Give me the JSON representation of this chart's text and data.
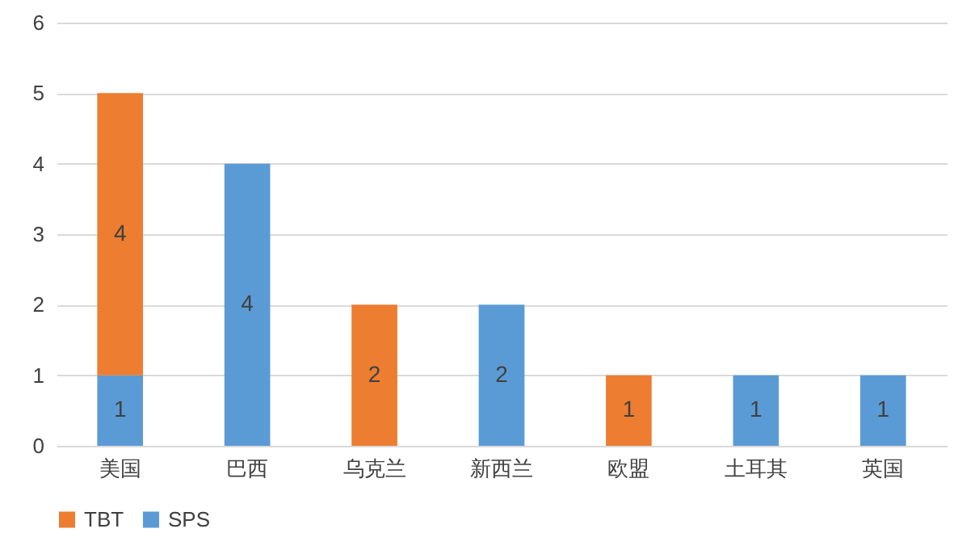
{
  "chart_data": {
    "type": "bar",
    "stacked": true,
    "categories": [
      "美国",
      "巴西",
      "乌克兰",
      "新西兰",
      "欧盟",
      "土耳其",
      "英国"
    ],
    "series": [
      {
        "name": "SPS",
        "color": "#5b9bd5",
        "values": [
          1,
          4,
          null,
          2,
          null,
          1,
          1
        ]
      },
      {
        "name": "TBT",
        "color": "#ed7d31",
        "values": [
          4,
          null,
          2,
          null,
          1,
          null,
          null
        ]
      }
    ],
    "ylim": [
      0,
      6
    ],
    "yticks": [
      0,
      1,
      2,
      3,
      4,
      5,
      6
    ],
    "grid": "y",
    "legend": "bottom",
    "data_labels": true
  }
}
